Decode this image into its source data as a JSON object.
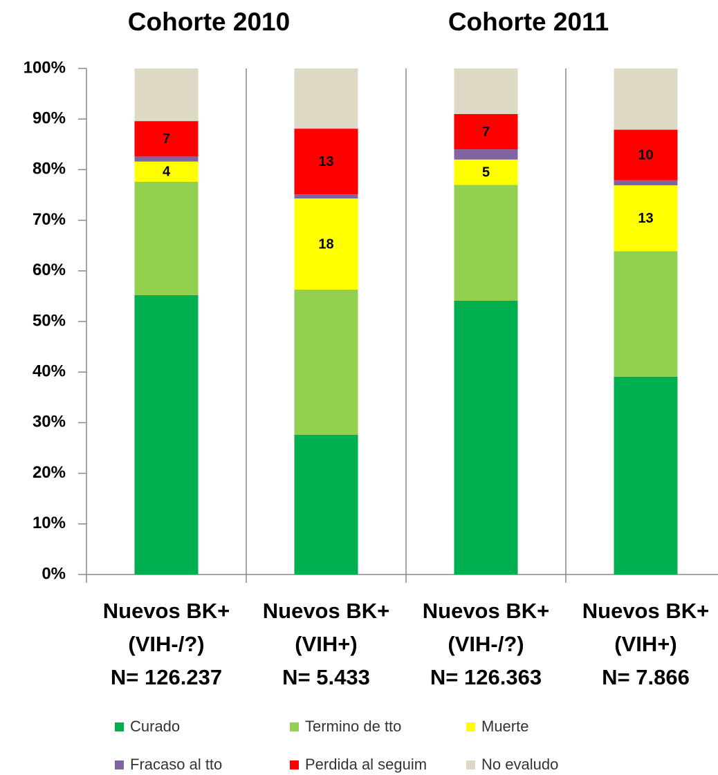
{
  "chart_data": {
    "type": "stacked_bar",
    "group_titles": [
      "Cohorte 2010",
      "Cohorte 2011"
    ],
    "categories": [
      [
        "Nuevos BK+",
        "(VIH-/?)",
        "N= 126.237"
      ],
      [
        "Nuevos BK+",
        "(VIH+)",
        "N= 5.433"
      ],
      [
        "Nuevos BK+",
        "(VIH-/?)",
        "N= 126.363"
      ],
      [
        "Nuevos BK+",
        "(VIH+)",
        "N= 7.866"
      ]
    ],
    "series": [
      {
        "name": "Curado",
        "color": "#00b050",
        "values": [
          55.2,
          27.6,
          54.1,
          39.1
        ]
      },
      {
        "name": "Termino de tto",
        "color": "#92d050",
        "values": [
          22.4,
          28.7,
          22.9,
          24.8
        ]
      },
      {
        "name": "Muerte",
        "color": "#ffff00",
        "values": [
          4,
          18,
          5,
          13
        ],
        "data_labels": true
      },
      {
        "name": "Fracaso al tto",
        "color": "#8064a2",
        "values": [
          1,
          0.8,
          2,
          1
        ]
      },
      {
        "name": "Perdida al seguim",
        "color": "#ff0000",
        "values": [
          7,
          13,
          7,
          10
        ],
        "data_labels": true
      },
      {
        "name": "No evaludo",
        "color": "#ddd9c4",
        "values": [
          10.4,
          11.9,
          9,
          12.1
        ]
      }
    ],
    "ylim": [
      0,
      100
    ],
    "yticks": [
      {
        "value": 0,
        "label": "0%"
      },
      {
        "value": 10,
        "label": "10%"
      },
      {
        "value": 20,
        "label": "20%"
      },
      {
        "value": 30,
        "label": "30%"
      },
      {
        "value": 40,
        "label": "40%"
      },
      {
        "value": 50,
        "label": "50%"
      },
      {
        "value": 60,
        "label": "60%"
      },
      {
        "value": 70,
        "label": "70%"
      },
      {
        "value": 80,
        "label": "80%"
      },
      {
        "value": 90,
        "label": "90%"
      },
      {
        "value": 100,
        "label": "100%"
      }
    ],
    "legend": "bottom"
  }
}
